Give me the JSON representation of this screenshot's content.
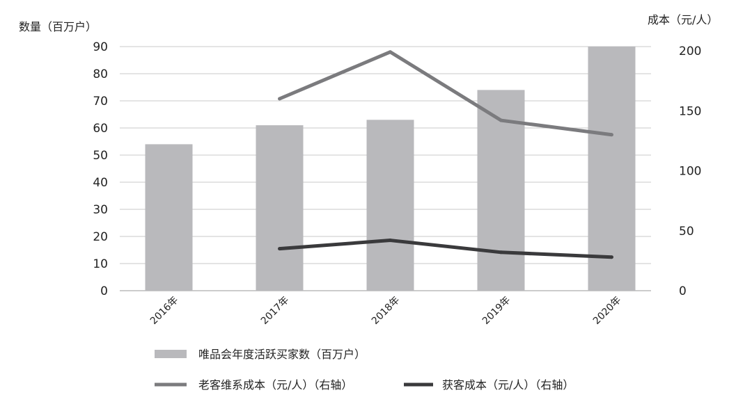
{
  "chart_data": {
    "type": "bar",
    "title": "",
    "xlabel": "",
    "ylabel": "数量（百万户）",
    "y2label": "成本（元/人）",
    "categories": [
      "2016年",
      "2017年",
      "2018年",
      "2019年",
      "2020年"
    ],
    "ylim": [
      0,
      90
    ],
    "y2lim": [
      0,
      200
    ],
    "y_ticks": [
      0,
      10,
      20,
      30,
      40,
      50,
      60,
      70,
      80,
      90
    ],
    "y2_ticks": [
      0,
      50,
      100,
      150,
      200
    ],
    "grid": true,
    "legend_position": "bottom",
    "series": [
      {
        "name": "唯品会年度活跃买家数（百万户）",
        "type": "bar",
        "axis": "left",
        "values": [
          54,
          61,
          63,
          74,
          90
        ],
        "color": "#b9b9bc"
      },
      {
        "name": "老客维系成本（元/人）（右轴）",
        "type": "line",
        "axis": "right",
        "values": [
          null,
          160,
          199,
          142,
          130
        ],
        "color": "#7b7b7e"
      },
      {
        "name": "获客成本（元/人）（右轴）",
        "type": "line",
        "axis": "right",
        "values": [
          null,
          35,
          42,
          32,
          28
        ],
        "color": "#3a3a3c"
      }
    ]
  }
}
